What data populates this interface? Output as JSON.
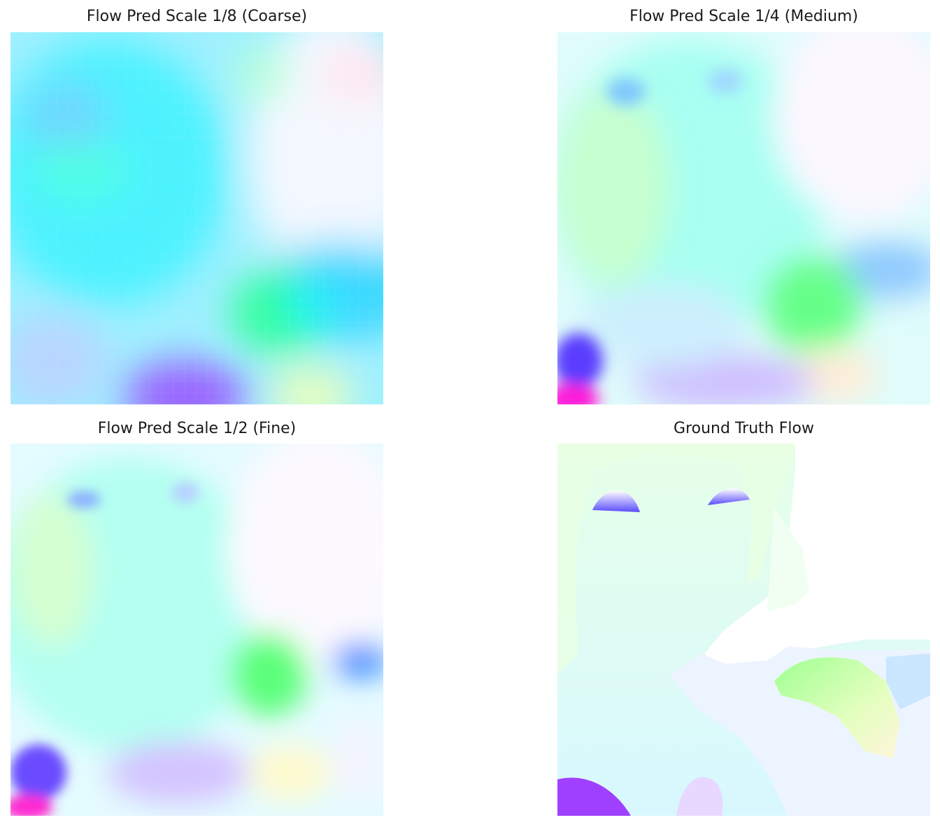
{
  "figure": {
    "panels": [
      {
        "id": "coarse",
        "title": "Flow Pred Scale 1/8 (Coarse)"
      },
      {
        "id": "medium",
        "title": "Flow Pred Scale 1/4 (Medium)"
      },
      {
        "id": "fine",
        "title": "Flow Pred Scale 1/2 (Fine)"
      },
      {
        "id": "gt",
        "title": "Ground Truth Flow"
      }
    ]
  }
}
